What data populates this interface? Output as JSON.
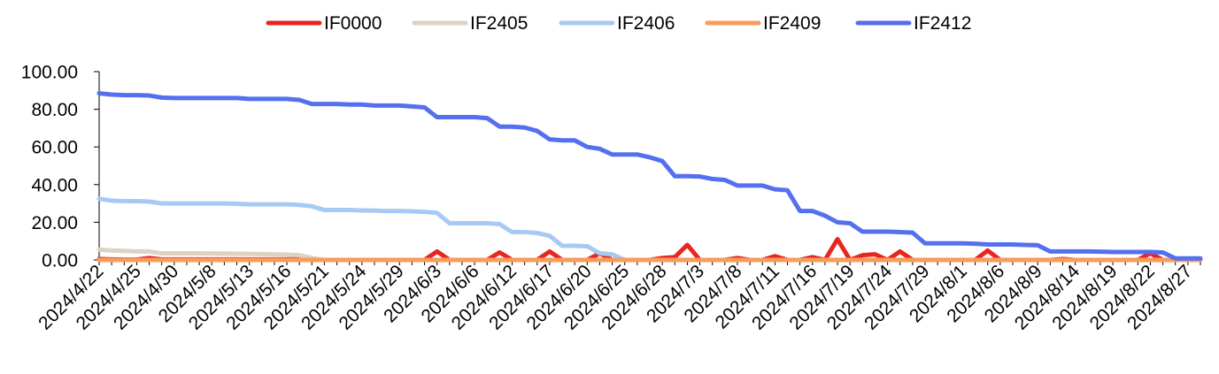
{
  "chart_data": {
    "type": "line",
    "title": "",
    "xlabel": "",
    "ylabel": "",
    "ylim": [
      0,
      100
    ],
    "y_ticks": [
      "0.00",
      "20.00",
      "40.00",
      "60.00",
      "80.00",
      "100.00"
    ],
    "grid": false,
    "legend_position": "top",
    "x": [
      "2024/4/22",
      "2024/4/23",
      "2024/4/24",
      "2024/4/25",
      "2024/4/26",
      "2024/4/29",
      "2024/4/30",
      "2024/5/6",
      "2024/5/7",
      "2024/5/8",
      "2024/5/9",
      "2024/5/10",
      "2024/5/13",
      "2024/5/14",
      "2024/5/15",
      "2024/5/16",
      "2024/5/17",
      "2024/5/20",
      "2024/5/21",
      "2024/5/22",
      "2024/5/23",
      "2024/5/24",
      "2024/5/27",
      "2024/5/28",
      "2024/5/29",
      "2024/5/30",
      "2024/5/31",
      "2024/6/3",
      "2024/6/4",
      "2024/6/5",
      "2024/6/6",
      "2024/6/7",
      "2024/6/11",
      "2024/6/12",
      "2024/6/13",
      "2024/6/14",
      "2024/6/17",
      "2024/6/18",
      "2024/6/19",
      "2024/6/20",
      "2024/6/21",
      "2024/6/24",
      "2024/6/25",
      "2024/6/26",
      "2024/6/27",
      "2024/6/28",
      "2024/7/1",
      "2024/7/2",
      "2024/7/3",
      "2024/7/4",
      "2024/7/5",
      "2024/7/8",
      "2024/7/9",
      "2024/7/10",
      "2024/7/11",
      "2024/7/12",
      "2024/7/15",
      "2024/7/16",
      "2024/7/17",
      "2024/7/18",
      "2024/7/19",
      "2024/7/22",
      "2024/7/23",
      "2024/7/24",
      "2024/7/25",
      "2024/7/26",
      "2024/7/29",
      "2024/7/30",
      "2024/7/31",
      "2024/8/1",
      "2024/8/2",
      "2024/8/5",
      "2024/8/6",
      "2024/8/7",
      "2024/8/8",
      "2024/8/9",
      "2024/8/12",
      "2024/8/13",
      "2024/8/14",
      "2024/8/15",
      "2024/8/16",
      "2024/8/19",
      "2024/8/20",
      "2024/8/21",
      "2024/8/22",
      "2024/8/23",
      "2024/8/26",
      "2024/8/27",
      "2024/8/28"
    ],
    "x_tick_labels": [
      "2024/4/22",
      "2024/4/25",
      "2024/4/30",
      "2024/5/8",
      "2024/5/13",
      "2024/5/16",
      "2024/5/21",
      "2024/5/24",
      "2024/5/29",
      "2024/6/3",
      "2024/6/6",
      "2024/6/12",
      "2024/6/17",
      "2024/6/20",
      "2024/6/25",
      "2024/6/28",
      "2024/7/3",
      "2024/7/8",
      "2024/7/11",
      "2024/7/16",
      "2024/7/19",
      "2024/7/24",
      "2024/7/29",
      "2024/8/1",
      "2024/8/6",
      "2024/8/9",
      "2024/8/14",
      "2024/8/19",
      "2024/8/22",
      "2024/8/27"
    ],
    "series": [
      {
        "name": "IF0000",
        "color": "#e8261f",
        "values": [
          0.5,
          0.3,
          0.2,
          0.2,
          1,
          0.3,
          0.3,
          0.3,
          0.3,
          0.3,
          0.3,
          0.3,
          0.3,
          0.3,
          0.3,
          0.3,
          0.6,
          0,
          0,
          0,
          0,
          0,
          0,
          0,
          0,
          0,
          0,
          4.5,
          0,
          0,
          0,
          0,
          4,
          0,
          0,
          0,
          4.5,
          0,
          0,
          0,
          3.5,
          0,
          0,
          0,
          0,
          1,
          1.5,
          8,
          0,
          0,
          0,
          1,
          0,
          0,
          2,
          0,
          0,
          1.5,
          0,
          11,
          0,
          2.5,
          3,
          0,
          4.5,
          0,
          0,
          0,
          0,
          0,
          0,
          5,
          0,
          0,
          0,
          0,
          0,
          0.5,
          0,
          0,
          0,
          0,
          0,
          0,
          3.5,
          0,
          0,
          0,
          0
        ]
      },
      {
        "name": "IF2405",
        "color": "#dcd3c2",
        "values": [
          5.5,
          5,
          4.8,
          4.5,
          4.5,
          3.5,
          3.5,
          3.5,
          3.5,
          3.4,
          3.4,
          3.3,
          3.2,
          3.1,
          3,
          2.8,
          2.5,
          1,
          0,
          0,
          0,
          0,
          0,
          0,
          0,
          0,
          0,
          0,
          0,
          0,
          0,
          0,
          0,
          0,
          0,
          0,
          0,
          0,
          0,
          0,
          0,
          0,
          0,
          0,
          0,
          0,
          0,
          0,
          0,
          0,
          0,
          0,
          0,
          0,
          0,
          0,
          0,
          0,
          0,
          0,
          0,
          0,
          0,
          0,
          0,
          0,
          0,
          0,
          0,
          0,
          0,
          0,
          0,
          0,
          0,
          0,
          0,
          0,
          0,
          0,
          0,
          0,
          0,
          0,
          0,
          0,
          0,
          0,
          0
        ]
      },
      {
        "name": "IF2406",
        "color": "#a6caf4",
        "values": [
          32.5,
          31.5,
          31.2,
          31.2,
          31,
          30,
          30,
          30,
          30,
          30,
          30,
          29.8,
          29.5,
          29.5,
          29.5,
          29.5,
          29.2,
          28.5,
          26.5,
          26.5,
          26.5,
          26.3,
          26.2,
          26,
          26,
          25.8,
          25.5,
          25,
          19.5,
          19.5,
          19.5,
          19.5,
          19,
          14.8,
          14.8,
          14.3,
          12.8,
          7.5,
          7.5,
          7.3,
          3.5,
          3,
          0,
          0,
          0,
          0,
          0,
          0,
          0,
          0,
          0,
          0,
          0,
          0,
          0,
          0,
          0,
          0,
          0,
          0,
          0,
          0,
          0,
          0,
          0,
          0,
          0,
          0,
          0,
          0,
          0,
          0,
          0,
          0,
          0,
          0,
          0,
          0,
          0,
          0,
          0,
          0,
          0,
          0,
          0,
          0,
          0,
          0,
          0
        ]
      },
      {
        "name": "IF2409",
        "color": "#f99c5a",
        "values": [
          0,
          0,
          0,
          0,
          0,
          0,
          0,
          0,
          0,
          0,
          0,
          0,
          0,
          0,
          0,
          0,
          0,
          0,
          0,
          0,
          0,
          0,
          0,
          0,
          0,
          0,
          0,
          0,
          0,
          0,
          0,
          0,
          0,
          0,
          0,
          0,
          0,
          0,
          0,
          0,
          0,
          0,
          0,
          0,
          0,
          0,
          0,
          0,
          0,
          0,
          0,
          0,
          0,
          0,
          0,
          0,
          0,
          0,
          0,
          0,
          0,
          0,
          0,
          0,
          0,
          0,
          0,
          0,
          0,
          0,
          0,
          0,
          0,
          0,
          0,
          0,
          0,
          0,
          0,
          0,
          0,
          0,
          0,
          0,
          0,
          0,
          0,
          0,
          0
        ]
      },
      {
        "name": "IF2412",
        "color": "#5570ef",
        "values": [
          88.5,
          87.8,
          87.5,
          87.5,
          87.3,
          86.2,
          86,
          86,
          86,
          86,
          86,
          86,
          85.5,
          85.5,
          85.5,
          85.5,
          85,
          82.8,
          82.8,
          82.8,
          82.5,
          82.5,
          82,
          82,
          82,
          81.5,
          81,
          75.8,
          75.8,
          75.8,
          75.8,
          75.3,
          70.8,
          70.8,
          70.3,
          68.5,
          64,
          63.5,
          63.5,
          60,
          59,
          56,
          56,
          56,
          54.5,
          52.5,
          44.5,
          44.5,
          44.3,
          43,
          42.5,
          39.5,
          39.5,
          39.5,
          37.5,
          37,
          26,
          26,
          23.5,
          20,
          19.5,
          15,
          15,
          15,
          14.8,
          14.5,
          8.8,
          8.8,
          8.8,
          8.8,
          8.6,
          8.2,
          8.2,
          8.2,
          8,
          7.8,
          4.5,
          4.5,
          4.5,
          4.5,
          4.4,
          4.2,
          4.2,
          4.2,
          4.2,
          4,
          0.8,
          0.8,
          0.8
        ]
      }
    ]
  }
}
